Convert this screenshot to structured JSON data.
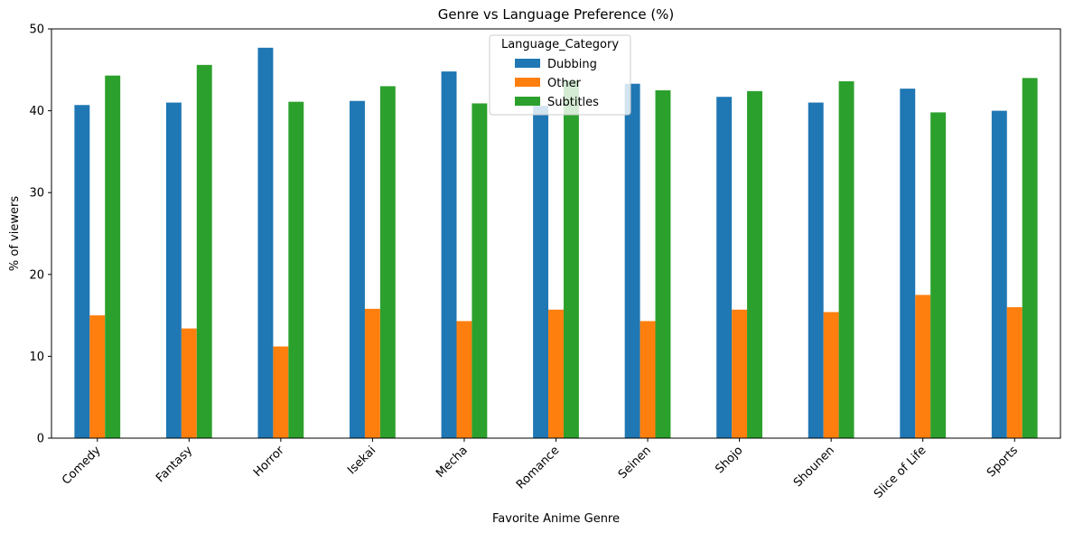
{
  "chart_data": {
    "type": "bar",
    "title": "Genre vs Language Preference (%)",
    "xlabel": "Favorite Anime Genre",
    "ylabel": "% of viewers",
    "ylim": [
      0,
      50
    ],
    "yticks": [
      0,
      10,
      20,
      30,
      40,
      50
    ],
    "grid": false,
    "categories": [
      "Comedy",
      "Fantasy",
      "Horror",
      "Isekai",
      "Mecha",
      "Romance",
      "Seinen",
      "Shojo",
      "Shounen",
      "Slice of Life",
      "Sports"
    ],
    "series": [
      {
        "name": "Dubbing",
        "color": "#1f77b4",
        "values": [
          40.7,
          41.0,
          47.7,
          41.2,
          44.8,
          40.6,
          43.3,
          41.7,
          41.0,
          42.7,
          40.0
        ]
      },
      {
        "name": "Other",
        "color": "#ff7f0e",
        "values": [
          15.0,
          13.4,
          11.2,
          15.8,
          14.3,
          15.7,
          14.3,
          15.7,
          15.4,
          17.5,
          16.0
        ]
      },
      {
        "name": "Subtitles",
        "color": "#2ca02c",
        "values": [
          44.3,
          45.6,
          41.1,
          43.0,
          40.9,
          43.7,
          42.5,
          42.4,
          43.6,
          39.8,
          44.0
        ]
      }
    ],
    "legend": {
      "title": "Language_Category",
      "placement": "top-center"
    }
  }
}
